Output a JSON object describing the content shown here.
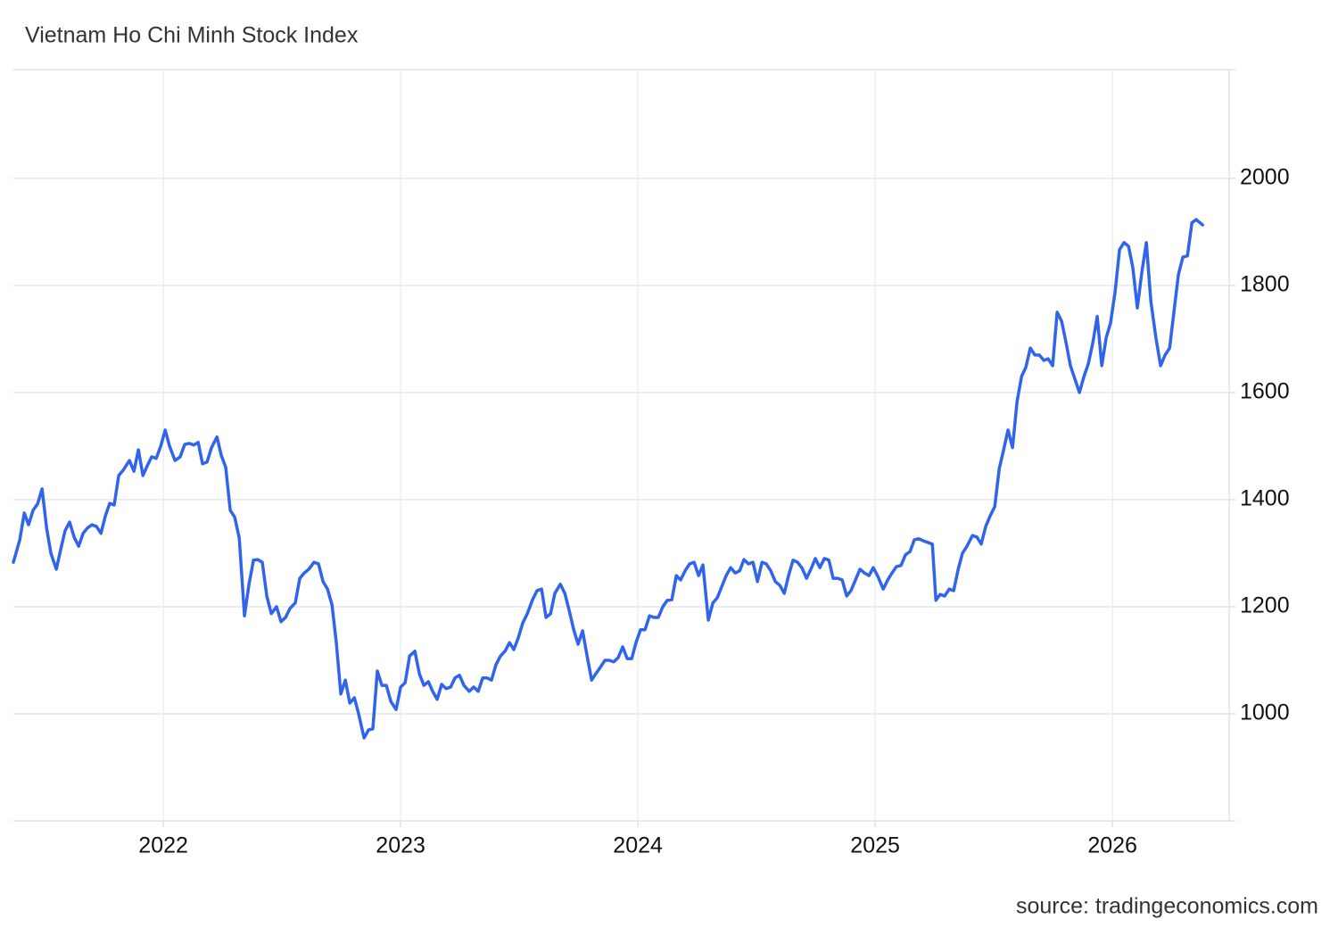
{
  "chart_data": {
    "type": "line",
    "title": "Vietnam Ho Chi Minh Stock Index",
    "source": "source: tradingeconomics.com",
    "color": "#2f64eb",
    "grid": true,
    "xlim": [
      2021.368,
      2026.492
    ],
    "xticks": [
      2022,
      2023,
      2024,
      2025,
      2026
    ],
    "ylim": [
      800,
      2203
    ],
    "yticks": [
      1000,
      1200,
      1400,
      1600,
      1800,
      2000
    ],
    "x": [
      2021.368,
      2021.395,
      2021.414,
      2021.432,
      2021.451,
      2021.47,
      2021.489,
      2021.508,
      2021.526,
      2021.549,
      2021.568,
      2021.586,
      2021.605,
      2021.624,
      2021.643,
      2021.662,
      2021.68,
      2021.699,
      2021.718,
      2021.737,
      2021.756,
      2021.774,
      2021.793,
      2021.812,
      2021.831,
      2021.857,
      2021.876,
      2021.895,
      2021.914,
      2021.932,
      2021.951,
      2021.97,
      2021.989,
      2022.008,
      2022.026,
      2022.049,
      2022.071,
      2022.09,
      2022.109,
      2022.128,
      2022.147,
      2022.165,
      2022.184,
      2022.203,
      2022.226,
      2022.244,
      2022.263,
      2022.282,
      2022.301,
      2022.32,
      2022.342,
      2022.361,
      2022.38,
      2022.398,
      2022.417,
      2022.436,
      2022.455,
      2022.477,
      2022.496,
      2022.515,
      2022.534,
      2022.556,
      2022.575,
      2022.594,
      2022.613,
      2022.635,
      2022.654,
      2022.673,
      2022.692,
      2022.711,
      2022.729,
      2022.748,
      2022.767,
      2022.786,
      2022.805,
      2022.823,
      2022.846,
      2022.865,
      2022.883,
      2022.902,
      2022.921,
      2022.94,
      2022.959,
      2022.981,
      2023.0,
      2023.019,
      2023.038,
      2023.06,
      2023.079,
      2023.098,
      2023.117,
      2023.135,
      2023.154,
      2023.173,
      2023.192,
      2023.211,
      2023.229,
      2023.248,
      2023.267,
      2023.289,
      2023.308,
      2023.327,
      2023.346,
      2023.365,
      2023.383,
      2023.402,
      2023.421,
      2023.44,
      2023.459,
      2023.477,
      2023.496,
      2023.515,
      2023.534,
      2023.556,
      2023.575,
      2023.594,
      2023.613,
      2023.632,
      2023.65,
      2023.673,
      2023.692,
      2023.711,
      2023.729,
      2023.748,
      2023.767,
      2023.786,
      2023.805,
      2023.823,
      2023.842,
      2023.861,
      2023.88,
      2023.898,
      2023.917,
      2023.936,
      2023.955,
      2023.974,
      2023.992,
      2024.011,
      2024.03,
      2024.049,
      2024.068,
      2024.086,
      2024.105,
      2024.124,
      2024.143,
      2024.162,
      2024.18,
      2024.199,
      2024.218,
      2024.237,
      2024.256,
      2024.274,
      2024.297,
      2024.316,
      2024.335,
      2024.353,
      2024.372,
      2024.391,
      2024.41,
      2024.429,
      2024.447,
      2024.466,
      2024.485,
      2024.504,
      2024.523,
      2024.541,
      2024.56,
      2024.579,
      2024.598,
      2024.617,
      2024.635,
      2024.654,
      2024.673,
      2024.692,
      2024.711,
      2024.729,
      2024.748,
      2024.767,
      2024.786,
      2024.805,
      2024.823,
      2024.842,
      2024.861,
      2024.88,
      2024.898,
      2024.917,
      2024.936,
      2024.955,
      2024.974,
      2024.992,
      2025.011,
      2025.034,
      2025.053,
      2025.071,
      2025.09,
      2025.109,
      2025.128,
      2025.147,
      2025.165,
      2025.184,
      2025.203,
      2025.222,
      2025.241,
      2025.256,
      2025.274,
      2025.293,
      2025.312,
      2025.331,
      2025.35,
      2025.368,
      2025.387,
      2025.41,
      2025.429,
      2025.447,
      2025.466,
      2025.485,
      2025.504,
      2025.523,
      2025.541,
      2025.56,
      2025.579,
      2025.598,
      2025.617,
      2025.635,
      2025.654,
      2025.673,
      2025.692,
      2025.711,
      2025.729,
      2025.748,
      2025.767,
      2025.786,
      2025.805,
      2025.823,
      2025.842,
      2025.861,
      2025.88,
      2025.898,
      2025.917,
      2025.936,
      2025.955,
      2025.974,
      2025.992,
      2026.011,
      2026.03,
      2026.049,
      2026.068,
      2026.086,
      2026.105,
      2026.124,
      2026.143,
      2026.162,
      2026.184,
      2026.203,
      2026.222,
      2026.241,
      2026.259,
      2026.278,
      2026.297,
      2026.316,
      2026.335,
      2026.353,
      2026.38
    ],
    "values": [
      1283,
      1325,
      1375,
      1353,
      1380,
      1392,
      1420,
      1347,
      1300,
      1270,
      1308,
      1342,
      1358,
      1330,
      1313,
      1337,
      1347,
      1353,
      1350,
      1337,
      1370,
      1393,
      1390,
      1445,
      1455,
      1473,
      1453,
      1493,
      1445,
      1463,
      1480,
      1477,
      1500,
      1530,
      1500,
      1473,
      1480,
      1503,
      1505,
      1502,
      1507,
      1467,
      1470,
      1497,
      1517,
      1483,
      1460,
      1380,
      1367,
      1328,
      1183,
      1242,
      1287,
      1288,
      1283,
      1220,
      1187,
      1200,
      1172,
      1180,
      1197,
      1207,
      1253,
      1263,
      1270,
      1283,
      1280,
      1247,
      1233,
      1203,
      1133,
      1037,
      1063,
      1020,
      1030,
      1000,
      955,
      970,
      972,
      1080,
      1053,
      1053,
      1023,
      1008,
      1050,
      1058,
      1108,
      1117,
      1075,
      1053,
      1060,
      1042,
      1027,
      1055,
      1047,
      1050,
      1067,
      1072,
      1053,
      1042,
      1050,
      1042,
      1067,
      1067,
      1063,
      1092,
      1108,
      1117,
      1133,
      1120,
      1142,
      1170,
      1187,
      1213,
      1230,
      1233,
      1180,
      1187,
      1225,
      1242,
      1225,
      1192,
      1158,
      1130,
      1155,
      1108,
      1063,
      1075,
      1087,
      1100,
      1100,
      1097,
      1105,
      1125,
      1103,
      1103,
      1133,
      1157,
      1157,
      1183,
      1180,
      1180,
      1200,
      1212,
      1213,
      1258,
      1250,
      1267,
      1280,
      1283,
      1258,
      1278,
      1175,
      1207,
      1217,
      1237,
      1258,
      1273,
      1263,
      1267,
      1288,
      1280,
      1283,
      1247,
      1283,
      1280,
      1267,
      1247,
      1240,
      1225,
      1258,
      1287,
      1283,
      1272,
      1253,
      1270,
      1290,
      1273,
      1290,
      1287,
      1253,
      1253,
      1250,
      1220,
      1230,
      1250,
      1270,
      1263,
      1258,
      1273,
      1257,
      1233,
      1250,
      1263,
      1275,
      1277,
      1297,
      1303,
      1325,
      1327,
      1323,
      1320,
      1317,
      1212,
      1223,
      1220,
      1233,
      1230,
      1270,
      1300,
      1313,
      1333,
      1330,
      1317,
      1350,
      1370,
      1387,
      1458,
      1492,
      1530,
      1497,
      1583,
      1630,
      1647,
      1683,
      1670,
      1670,
      1660,
      1663,
      1650,
      1750,
      1733,
      1692,
      1650,
      1625,
      1600,
      1630,
      1653,
      1692,
      1742,
      1650,
      1703,
      1730,
      1787,
      1867,
      1880,
      1873,
      1833,
      1758,
      1825,
      1880,
      1770,
      1700,
      1650,
      1670,
      1683,
      1750,
      1820,
      1853,
      1855,
      1917,
      1923,
      1913
    ]
  }
}
